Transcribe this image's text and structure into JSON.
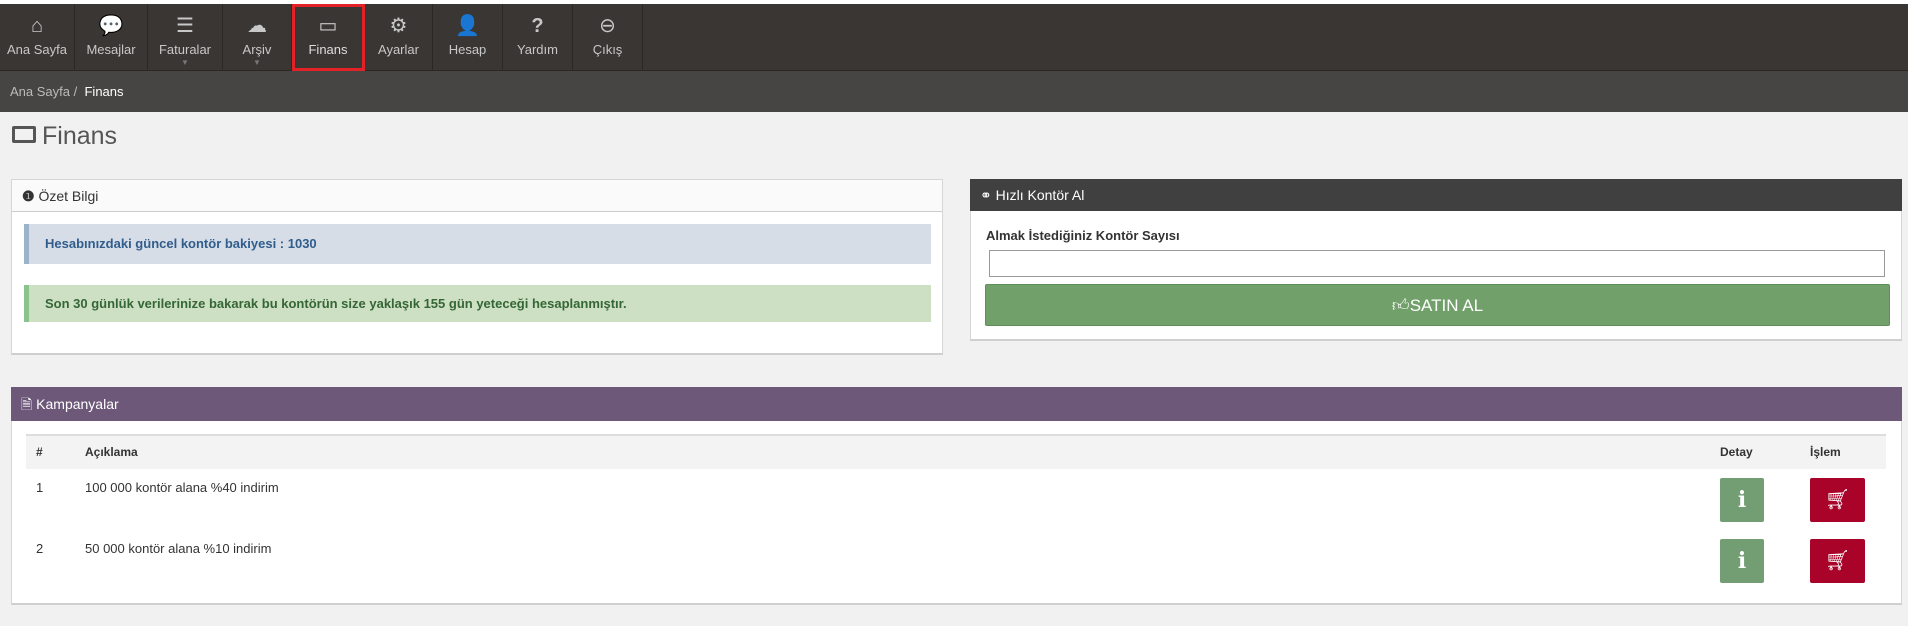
{
  "nav": {
    "items": [
      {
        "label": "Ana Sayfa",
        "icon": "home-icon",
        "glyph": "⌂"
      },
      {
        "label": "Mesajlar",
        "icon": "chat-icon",
        "glyph": "💬"
      },
      {
        "label": "Faturalar",
        "icon": "list-icon",
        "glyph": "☰"
      },
      {
        "label": "Arşiv",
        "icon": "cloud-icon",
        "glyph": "☁"
      },
      {
        "label": "Finans",
        "icon": "credit-card-icon",
        "glyph": "▭"
      },
      {
        "label": "Ayarlar",
        "icon": "gears-icon",
        "glyph": "⚙"
      },
      {
        "label": "Hesap",
        "icon": "user-icon",
        "glyph": "👤"
      },
      {
        "label": "Yardım",
        "icon": "question-icon",
        "glyph": "?"
      },
      {
        "label": "Çıkış",
        "icon": "minus-circle-icon",
        "glyph": "⊖"
      }
    ],
    "active": "Finans"
  },
  "breadcrumb": {
    "home": "Ana Sayfa",
    "sep": "/",
    "current": "Finans"
  },
  "page": {
    "title": "Finans",
    "icon": "money-icon"
  },
  "summary": {
    "title": "Özet Bilgi",
    "balance_text": "Hesabınızdaki güncel kontör bakiyesi : 1030",
    "estimate_text": "Son 30 günlük verilerinize bakarak bu kontörün size yaklaşık 155 gün yeteceği hesaplanmıştır."
  },
  "quick": {
    "title": "Hızlı Kontör Al",
    "label": "Almak İstediğiniz Kontör Sayısı",
    "input_value": "",
    "button": "SATIN AL"
  },
  "campaigns": {
    "title": "Kampanyalar",
    "columns": [
      "#",
      "Açıklama",
      "Detay",
      "İşlem"
    ],
    "rows": [
      {
        "no": "1",
        "desc": "100 000 kontör alana %40 indirim"
      },
      {
        "no": "2",
        "desc": "50 000 kontör alana %10 indirim"
      }
    ]
  },
  "colors": {
    "nav": "#3a3633",
    "breadcrumb": "#474544",
    "info": "#d6dde7",
    "success": "#cde0c4",
    "buy": "#71a06a",
    "campaign_header": "#6e587a",
    "detail": "#739e73",
    "cart": "#a90329"
  }
}
